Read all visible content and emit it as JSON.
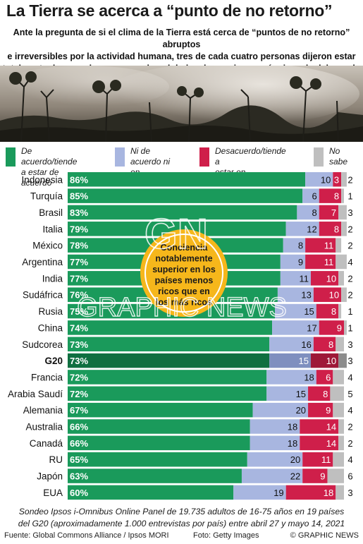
{
  "title": "La Tierra se acerca a “punto de no retorno”",
  "subtitle_lines": [
    "Ante la pregunta de si el clima de la Tierra está cerca de “puntos de no retorno” abruptos",
    "e irreversibles por la actividad humana, tres de cada cuatro personas dijeron estar",
    "totalmente de acuerdo, en un sondeo global en las naciones más ricas de del mundo"
  ],
  "legend": [
    {
      "lines": [
        "De acuerdo/tiende",
        "a estar de acuerdo"
      ],
      "color": "#1a9a5b"
    },
    {
      "lines": [
        "Ni de acuerdo ni",
        "en desacuerdo"
      ],
      "color": "#a8b6e0"
    },
    {
      "lines": [
        "Desacuerdo/tiende a",
        "estar en desacuerdo"
      ],
      "color": "#cf1f4a"
    },
    {
      "lines": [
        "No",
        "sabe"
      ],
      "color": "#bfbfbf"
    }
  ],
  "colors": {
    "agree": "#1a9a5b",
    "neutral": "#a8b6e0",
    "disagree": "#cf1f4a",
    "dontknow": "#bfbfbf",
    "g20_agree": "#0f6f40",
    "g20_neutral": "#7f8fbf",
    "g20_disagree": "#9e1838",
    "g20_dontknow": "#8c8c8c"
  },
  "callout_lines": [
    "Conciencia",
    "notablemente",
    "superior en los",
    "países menos",
    "ricos que en",
    "los más ricos"
  ],
  "watermark": "GRAPHIC NEWS",
  "watermark_logo": "GN",
  "chart_data": {
    "type": "bar",
    "stacked": true,
    "orientation": "horizontal",
    "categories": [
      "Indonesia",
      "Turquía",
      "Brasil",
      "Italia",
      "México",
      "Argentina",
      "India",
      "Sudáfrica",
      "Rusia",
      "China",
      "Sudcorea",
      "G20",
      "Francia",
      "Arabia Saudí",
      "Alemania",
      "Australia",
      "Canadá",
      "RU",
      "Japón",
      "EUA"
    ],
    "highlight": "G20",
    "series": [
      {
        "name": "De acuerdo/tiende a estar de acuerdo",
        "values": [
          86,
          85,
          83,
          79,
          78,
          77,
          77,
          76,
          75,
          74,
          73,
          73,
          72,
          72,
          67,
          66,
          66,
          65,
          63,
          60
        ]
      },
      {
        "name": "Ni de acuerdo ni en desacuerdo",
        "values": [
          10,
          6,
          8,
          12,
          8,
          9,
          11,
          13,
          15,
          17,
          16,
          15,
          18,
          15,
          20,
          18,
          18,
          20,
          22,
          19
        ]
      },
      {
        "name": "Desacuerdo/tiende a estar en desacuerdo",
        "values": [
          3,
          8,
          7,
          8,
          11,
          11,
          10,
          10,
          8,
          9,
          8,
          10,
          6,
          8,
          9,
          14,
          14,
          11,
          9,
          18
        ]
      },
      {
        "name": "No sabe",
        "values": [
          2,
          1,
          3,
          2,
          2,
          4,
          2,
          2,
          1,
          1,
          3,
          3,
          4,
          5,
          4,
          2,
          2,
          4,
          6,
          3
        ]
      }
    ],
    "xlim": [
      0,
      100
    ]
  },
  "footnote_lines": [
    "Sondeo Ipsos i-Omnibus Online Panel de 19.735 adultos de 16-75 años en 19 países",
    "del G20 (aproximadamente 1.000 entrevistas por país) entre abril 27 y mayo 14, 2021"
  ],
  "source": "Fuente: Global Commons Alliance / Ipsos MORI",
  "photo_credit": "Foto: Getty Images",
  "copyright": "© GRAPHIC NEWS"
}
